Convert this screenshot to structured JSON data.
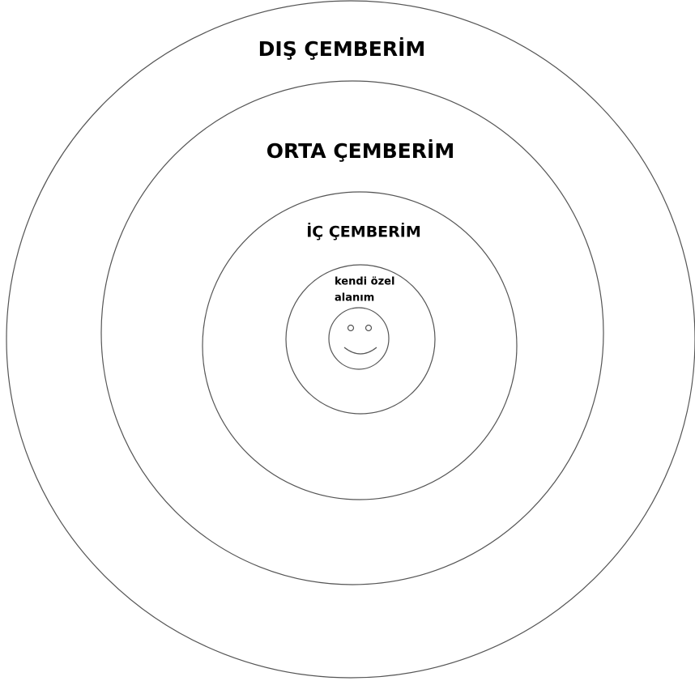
{
  "rings": [
    {
      "label": "DIŞ ÇEMBERİM"
    },
    {
      "label": "ORTA ÇEMBERİM"
    },
    {
      "label": "İÇ ÇEMBERİM"
    },
    {
      "label_lines": [
        "kendi özel",
        "alanım"
      ]
    }
  ]
}
